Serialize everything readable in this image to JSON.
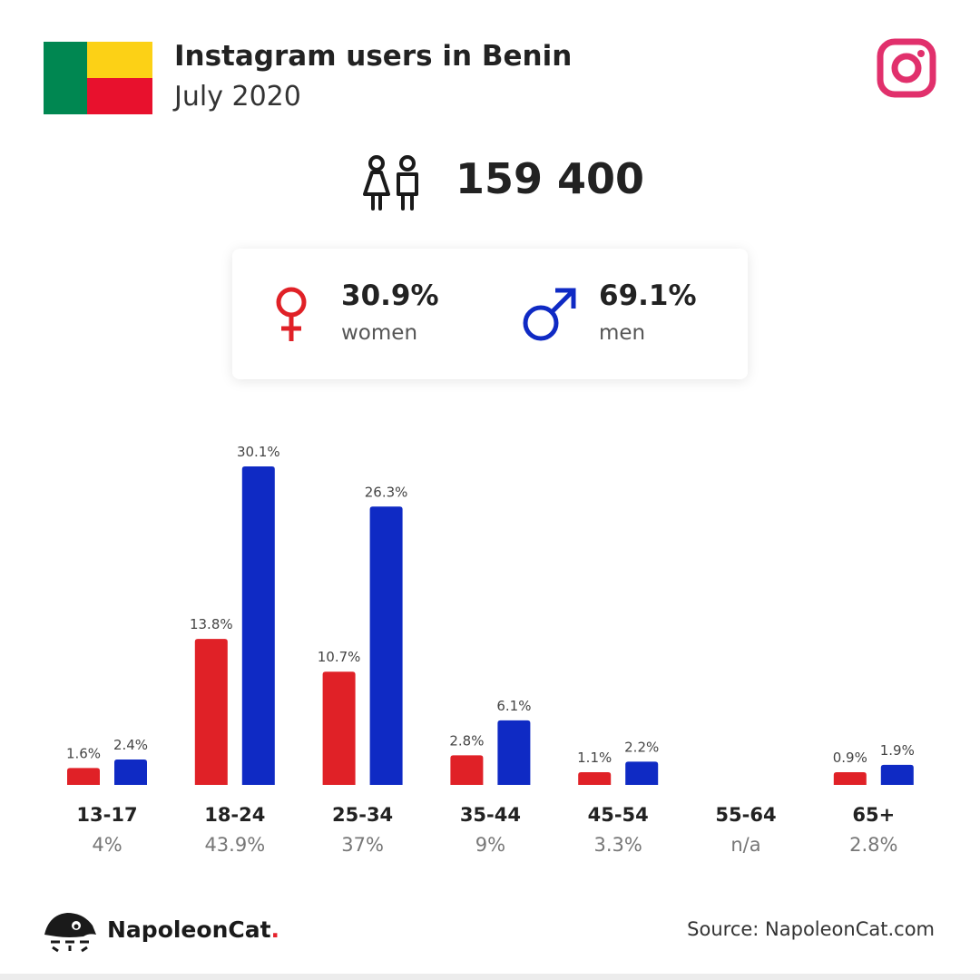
{
  "header": {
    "title": "Instagram users in Benin",
    "subtitle": "July 2020"
  },
  "colors": {
    "women": "#E02127",
    "men": "#0F2AC4",
    "instagram": "#E1306C"
  },
  "icons": {
    "flag": "benin-flag",
    "instagram": "instagram-icon",
    "users": "users-icon",
    "female": "female-symbol-icon",
    "male": "male-symbol-icon",
    "logo": "napoleoncat-logo"
  },
  "total": {
    "value": "159 400"
  },
  "gender": {
    "women": {
      "pct": "30.9%",
      "label": "women"
    },
    "men": {
      "pct": "69.1%",
      "label": "men"
    }
  },
  "chart_data": {
    "type": "bar",
    "categories": [
      "13-17",
      "18-24",
      "25-34",
      "35-44",
      "45-54",
      "55-64",
      "65+"
    ],
    "category_totals": [
      "4%",
      "43.9%",
      "37%",
      "9%",
      "3.3%",
      "n/a",
      "2.8%"
    ],
    "series": [
      {
        "name": "women",
        "values": [
          1.6,
          13.8,
          10.7,
          2.8,
          1.1,
          null,
          0.9
        ],
        "labels": [
          "1.6%",
          "13.8%",
          "10.7%",
          "2.8%",
          "1.1%",
          "",
          "0.9%"
        ]
      },
      {
        "name": "men",
        "values": [
          2.4,
          30.1,
          26.3,
          6.1,
          2.2,
          null,
          1.9
        ],
        "labels": [
          "2.4%",
          "30.1%",
          "26.3%",
          "6.1%",
          "2.2%",
          "",
          "1.9%"
        ]
      }
    ],
    "title": "",
    "xlabel": "",
    "ylabel": "",
    "ylim": [
      0,
      30.1
    ],
    "grid": false,
    "legend": "none"
  },
  "footer": {
    "brand": "NapoleonCat",
    "brand_dot": ".",
    "source": "Source: NapoleonCat.com"
  }
}
